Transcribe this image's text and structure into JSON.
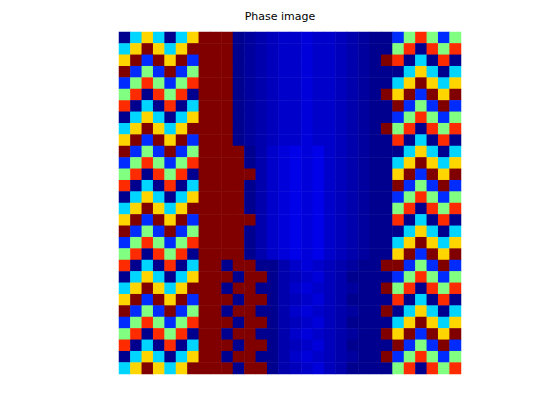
{
  "chart_data": {
    "type": "heatmap",
    "title": "Phase image",
    "clim": [
      -3,
      3
    ],
    "tick_labels": false,
    "cells": [
      [
        -3,
        -1,
        1,
        -1,
        -3,
        -1,
        1,
        3,
        3,
        3,
        -3,
        -2.9,
        -2.8,
        -2.7,
        -2.6,
        -2.6,
        -2.5,
        -2.6,
        -2.6,
        -2.7,
        -2.8,
        -2.9,
        -3,
        -3,
        -2,
        0,
        2,
        0,
        -2,
        0
      ],
      [
        -1,
        1,
        3,
        1,
        -1,
        1,
        3,
        3,
        3,
        3,
        -3,
        -2.9,
        -2.8,
        -2.7,
        -2.6,
        -2.6,
        -2.5,
        -2.6,
        -2.6,
        -2.7,
        -2.8,
        -2.9,
        -3,
        -3,
        0,
        2,
        -3,
        2,
        0,
        2
      ],
      [
        1,
        3,
        -2,
        3,
        1,
        3,
        -2,
        3,
        3,
        3,
        -3,
        -2.9,
        -2.8,
        -2.7,
        -2.6,
        -2.6,
        -2.5,
        -2.6,
        -2.6,
        -2.7,
        -2.8,
        -2.9,
        -3,
        3,
        2,
        -3,
        -1,
        -3,
        2,
        -3
      ],
      [
        3,
        -2,
        0,
        -2,
        3,
        -2,
        0,
        3,
        3,
        3,
        -3,
        -2.9,
        -2.8,
        -2.7,
        -2.6,
        -2.6,
        -2.5,
        -2.6,
        -2.6,
        -2.7,
        -2.8,
        -2.9,
        -3,
        -3,
        -3,
        -1,
        1,
        -1,
        -3,
        -1
      ],
      [
        -2,
        0,
        2,
        0,
        -2,
        0,
        2,
        3,
        3,
        3,
        -3,
        -2.9,
        -2.8,
        -2.7,
        -2.6,
        -2.6,
        -2.5,
        -2.6,
        -2.6,
        -2.7,
        -2.8,
        -2.9,
        -3,
        -3,
        -1,
        1,
        3,
        1,
        -1,
        1
      ],
      [
        0,
        2,
        -3,
        2,
        0,
        2,
        -3,
        3,
        3,
        3,
        -3,
        -2.9,
        -2.8,
        -2.7,
        -2.6,
        -2.6,
        -2.5,
        -2.6,
        -2.6,
        -2.7,
        -2.8,
        -2.9,
        -3,
        3,
        1,
        3,
        -2,
        3,
        1,
        3
      ],
      [
        2,
        -3,
        -1,
        -3,
        2,
        -3,
        -1,
        3,
        3,
        3,
        -3,
        -2.9,
        -2.8,
        -2.7,
        -2.6,
        -2.6,
        -2.5,
        -2.6,
        -2.6,
        -2.7,
        -2.8,
        -2.9,
        -3,
        -3,
        3,
        -2,
        0,
        -2,
        3,
        -2
      ],
      [
        -3,
        -1,
        1,
        -1,
        -3,
        -1,
        1,
        3,
        3,
        3,
        -3,
        -2.9,
        -2.8,
        -2.7,
        -2.6,
        -2.6,
        -2.5,
        -2.6,
        -2.6,
        -2.7,
        -2.8,
        -2.9,
        -3,
        -3,
        -2,
        0,
        2,
        0,
        -2,
        0
      ],
      [
        -1,
        1,
        3,
        1,
        -1,
        1,
        3,
        3,
        3,
        3,
        -3,
        -2.9,
        -2.8,
        -2.7,
        -2.6,
        -2.6,
        -2.5,
        -2.6,
        -2.6,
        -2.7,
        -2.8,
        -2.9,
        -3,
        3,
        0,
        2,
        -3,
        2,
        0,
        2
      ],
      [
        1,
        3,
        -2,
        3,
        1,
        3,
        -2,
        3,
        3,
        3,
        -3,
        -2.9,
        -2.8,
        -2.7,
        -2.6,
        -2.6,
        -2.5,
        -2.6,
        -2.6,
        -2.7,
        -2.8,
        -2.9,
        -3,
        -3,
        2,
        -3,
        -1,
        -3,
        2,
        -3
      ],
      [
        3,
        -2,
        0,
        -2,
        3,
        -2,
        0,
        3,
        3,
        3,
        3,
        -3,
        -2.8,
        -2.6,
        -2.5,
        -2.4,
        -2.5,
        -2.4,
        -2.6,
        -2.7,
        -2.8,
        -2.9,
        -3,
        -3,
        -3,
        -1,
        1,
        -1,
        -3,
        -1
      ],
      [
        -2,
        0,
        2,
        0,
        -2,
        0,
        2,
        3,
        3,
        3,
        3,
        -3,
        -2.8,
        -2.6,
        -2.5,
        -2.4,
        -2.5,
        -2.4,
        -2.6,
        -2.7,
        -2.8,
        -2.9,
        -3,
        -3,
        -1,
        1,
        3,
        1,
        -1,
        1
      ],
      [
        0,
        2,
        -3,
        2,
        0,
        2,
        -3,
        3,
        3,
        3,
        3,
        3,
        -2.8,
        -2.6,
        -2.5,
        -2.4,
        -2.5,
        -2.4,
        -2.6,
        -2.7,
        -2.8,
        -2.9,
        -3,
        -3,
        1,
        3,
        -2,
        3,
        1,
        3
      ],
      [
        2,
        -3,
        -1,
        -3,
        2,
        -3,
        -1,
        3,
        3,
        3,
        3,
        -3,
        -2.8,
        -2.6,
        -2.5,
        -2.4,
        -2.5,
        -2.4,
        -2.6,
        -2.7,
        -2.8,
        -2.9,
        -3,
        -3,
        3,
        -2,
        0,
        -2,
        3,
        -2
      ],
      [
        -3,
        -1,
        1,
        -1,
        -3,
        -1,
        1,
        3,
        3,
        3,
        3,
        -3,
        -2.8,
        -2.6,
        -2.5,
        -2.4,
        -2.5,
        -2.4,
        -2.6,
        -2.7,
        -2.8,
        -2.9,
        -3,
        -3,
        -2,
        0,
        2,
        0,
        -2,
        0
      ],
      [
        -1,
        1,
        3,
        1,
        -1,
        1,
        3,
        3,
        3,
        3,
        3,
        -3,
        -2.8,
        -2.6,
        -2.5,
        -2.4,
        -2.5,
        -2.4,
        -2.6,
        -2.7,
        -2.8,
        -2.9,
        -3,
        -3,
        0,
        2,
        -3,
        2,
        0,
        2
      ],
      [
        1,
        3,
        -2,
        3,
        1,
        3,
        -2,
        3,
        3,
        3,
        3,
        3,
        -2.8,
        -2.6,
        -2.5,
        -2.4,
        -2.5,
        -2.4,
        -2.6,
        -2.7,
        -2.8,
        -2.9,
        -3,
        -3,
        2,
        -3,
        -1,
        -3,
        2,
        -3
      ],
      [
        3,
        -2,
        0,
        -2,
        3,
        -2,
        0,
        3,
        3,
        3,
        3,
        -3,
        -2.8,
        -2.6,
        -2.5,
        -2.4,
        -2.5,
        -2.4,
        -2.6,
        -2.7,
        -2.8,
        -2.9,
        -3,
        -3,
        -3,
        -1,
        1,
        -1,
        -3,
        -1
      ],
      [
        -2,
        0,
        2,
        0,
        -2,
        0,
        2,
        3,
        3,
        3,
        3,
        -3,
        -2.8,
        -2.6,
        -2.5,
        -2.4,
        -2.5,
        -2.4,
        -2.6,
        -2.7,
        -2.8,
        -2.9,
        -3,
        -3,
        -1,
        1,
        3,
        1,
        -1,
        1
      ],
      [
        0,
        2,
        -3,
        2,
        0,
        2,
        -3,
        3,
        3,
        3,
        3,
        -3,
        -2.8,
        -2.6,
        -2.5,
        -2.4,
        -2.5,
        -2.4,
        -2.6,
        -2.7,
        -2.8,
        -2.9,
        -3,
        -3,
        1,
        3,
        -2,
        3,
        1,
        3
      ],
      [
        2,
        -3,
        -1,
        -3,
        2,
        -3,
        -1,
        3,
        3,
        -3,
        3,
        3,
        -3,
        -3,
        -2.8,
        -2.6,
        -2.5,
        -2.6,
        -2.7,
        -2.8,
        -2.9,
        -3,
        -3,
        3,
        3,
        -2,
        0,
        -2,
        3,
        -2
      ],
      [
        -3,
        -1,
        1,
        -1,
        -3,
        -1,
        1,
        3,
        3,
        3,
        -3,
        3,
        3,
        -3,
        -2.8,
        -2.7,
        -2.6,
        -2.5,
        -2.7,
        -2.8,
        -3,
        -3,
        -3,
        -3,
        -2,
        0,
        2,
        0,
        -2,
        0
      ],
      [
        -1,
        1,
        3,
        1,
        -1,
        1,
        3,
        3,
        3,
        -3,
        3,
        3,
        -3,
        -3,
        -2.8,
        -2.6,
        -2.5,
        -2.6,
        -2.7,
        -2.8,
        -2.9,
        -3,
        -3,
        3,
        0,
        2,
        -3,
        2,
        0,
        2
      ],
      [
        1,
        3,
        -2,
        3,
        1,
        3,
        -2,
        3,
        3,
        3,
        -3,
        3,
        3,
        -3,
        -2.8,
        -2.7,
        -2.6,
        -2.5,
        -2.7,
        -2.8,
        -3,
        -3,
        -3,
        -3,
        2,
        -3,
        -1,
        -3,
        2,
        -3
      ],
      [
        3,
        -2,
        0,
        -2,
        3,
        -2,
        0,
        3,
        3,
        -3,
        3,
        3,
        -3,
        -3,
        -2.8,
        -2.6,
        -2.5,
        -2.6,
        -2.7,
        -2.8,
        -2.9,
        -3,
        -3,
        3,
        -3,
        -1,
        1,
        -1,
        -3,
        -1
      ],
      [
        -2,
        0,
        2,
        0,
        -2,
        0,
        2,
        3,
        3,
        3,
        -3,
        3,
        3,
        -3,
        -2.8,
        -2.7,
        -2.6,
        -2.5,
        -2.7,
        -2.8,
        -3,
        -3,
        -3,
        -3,
        -1,
        1,
        3,
        1,
        -1,
        1
      ],
      [
        0,
        2,
        -3,
        2,
        0,
        2,
        -3,
        3,
        3,
        -3,
        3,
        3,
        -3,
        -3,
        -2.8,
        -2.6,
        -2.5,
        -2.6,
        -2.7,
        -2.8,
        -2.9,
        -3,
        -3,
        3,
        1,
        3,
        -2,
        3,
        1,
        3
      ],
      [
        2,
        -3,
        -1,
        -3,
        2,
        -3,
        -1,
        3,
        3,
        3,
        -3,
        3,
        3,
        -3,
        -2.8,
        -2.7,
        -2.6,
        -2.5,
        -2.7,
        -2.8,
        -3,
        -3,
        -3,
        -3,
        3,
        -2,
        0,
        -2,
        3,
        -2
      ],
      [
        -3,
        -1,
        1,
        -1,
        -3,
        -1,
        1,
        3,
        3,
        -3,
        3,
        3,
        -3,
        -3,
        -2.8,
        -2.6,
        -2.5,
        -2.6,
        -2.7,
        -2.8,
        -2.9,
        -3,
        -3,
        3,
        -2,
        0,
        2,
        0,
        -2,
        0
      ],
      [
        -1,
        1,
        3,
        1,
        -1,
        1,
        3,
        3,
        3,
        3,
        -3,
        3,
        3,
        -3,
        -2.8,
        -2.7,
        -2.6,
        -2.5,
        -2.7,
        -2.8,
        -3,
        -3,
        -3,
        -3,
        0,
        2,
        -3,
        2,
        0,
        2
      ]
    ]
  }
}
